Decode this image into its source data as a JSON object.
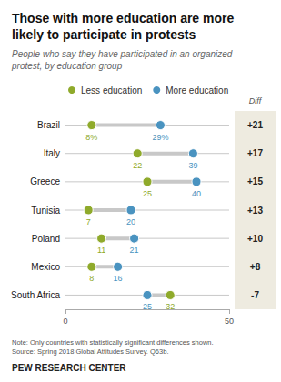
{
  "chart_data": {
    "type": "dumbbell",
    "title": "Those with more education are more\nlikely to participate in protests",
    "subtitle": "People who say they have participated in an organized\nprotest, by education group",
    "categories": [
      "Brazil",
      "Italy",
      "Greece",
      "Tunisia",
      "Poland",
      "Mexico",
      "South Africa"
    ],
    "series": [
      {
        "name": "Less education",
        "color": "#8faa2b",
        "values": [
          8,
          22,
          25,
          7,
          11,
          8,
          32
        ],
        "value_labels": [
          "8%",
          "22",
          "25",
          "7",
          "11",
          "8",
          "32"
        ]
      },
      {
        "name": "More education",
        "color": "#4a93c0",
        "values": [
          29,
          39,
          40,
          20,
          21,
          16,
          25
        ],
        "value_labels": [
          "29%",
          "39",
          "40",
          "20",
          "21",
          "16",
          "25"
        ]
      }
    ],
    "line_color": "#c8c8c8",
    "xlim": [
      0,
      50
    ],
    "xticks": [
      0,
      50
    ],
    "grid": true,
    "legend": "top",
    "data_labels": true,
    "diff": {
      "title": "Diff",
      "labels": [
        "+21",
        "+17",
        "+15",
        "+13",
        "+10",
        "+8",
        "-7"
      ],
      "color": "#eeebe0"
    },
    "notes": [
      "Note: Only countries with statistically significant differences shown.",
      "Source: Spring 2018 Global Attitudes Survey. Q63b."
    ],
    "source": "PEW RESEARCH CENTER"
  }
}
